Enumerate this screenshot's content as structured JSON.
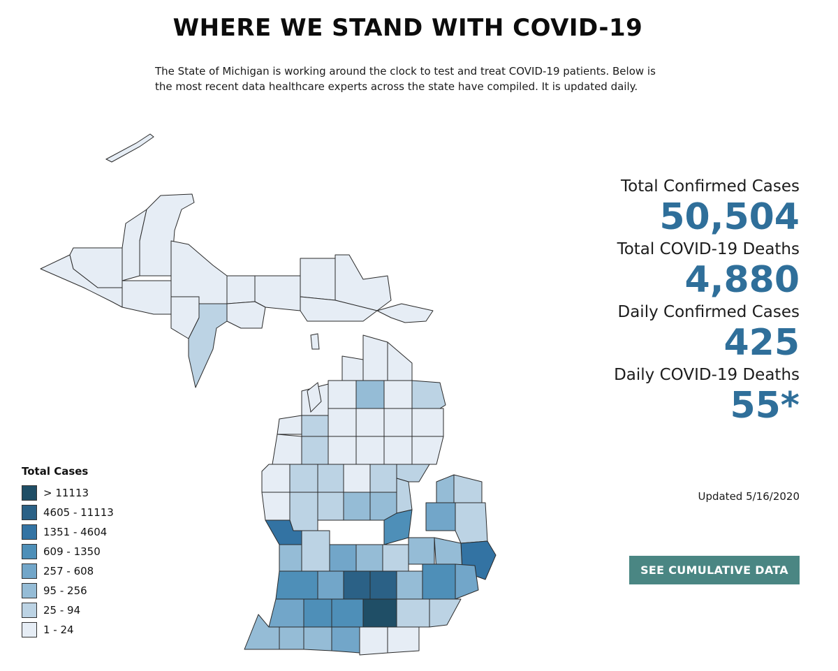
{
  "header": {
    "title": "WHERE WE STAND WITH COVID-19",
    "subtitle": "The State of Michigan is working around the clock to test and treat COVID-19 patients. Below is the most recent data healthcare experts across the state have compiled. It is updated daily."
  },
  "stats": [
    {
      "label": "Total Confirmed Cases",
      "value": "50,504"
    },
    {
      "label": "Total COVID-19 Deaths",
      "value": "4,880"
    },
    {
      "label": "Daily Confirmed Cases",
      "value": "425"
    },
    {
      "label": "Daily COVID-19 Deaths",
      "value": "55*"
    }
  ],
  "updated": "Updated 5/16/2020",
  "cta_label": "SEE CUMULATIVE DATA",
  "legend": {
    "title": "Total Cases",
    "bins": [
      {
        "label": "> 11113",
        "color": "#1f4e66"
      },
      {
        "label": "4605 - 11113",
        "color": "#2b6186"
      },
      {
        "label": "1351 - 4604",
        "color": "#3373a3"
      },
      {
        "label": "609 - 1350",
        "color": "#4e8fb8"
      },
      {
        "label": "257 - 608",
        "color": "#72a6c9"
      },
      {
        "label": "95 - 256",
        "color": "#95bcd6"
      },
      {
        "label": "25 - 94",
        "color": "#bcd3e4"
      },
      {
        "label": "1 - 24",
        "color": "#e6edf5"
      }
    ]
  },
  "map": {
    "bin_index_by_county": [
      7,
      7,
      7,
      7,
      7,
      7,
      7,
      6,
      7,
      7,
      7,
      7,
      7,
      7,
      7,
      7,
      7,
      7,
      7,
      5,
      7,
      6,
      7,
      7,
      6,
      7,
      7,
      7,
      7,
      7,
      6,
      7,
      7,
      7,
      7,
      7,
      6,
      6,
      7,
      6,
      6,
      7,
      6,
      6,
      5,
      5,
      6,
      6,
      5,
      4,
      2,
      6,
      6,
      3,
      5,
      2,
      5,
      4,
      5,
      6,
      5,
      3,
      4,
      1,
      1,
      5,
      3,
      4,
      4,
      3,
      3,
      0,
      6,
      6,
      5,
      5,
      5,
      4
    ]
  }
}
